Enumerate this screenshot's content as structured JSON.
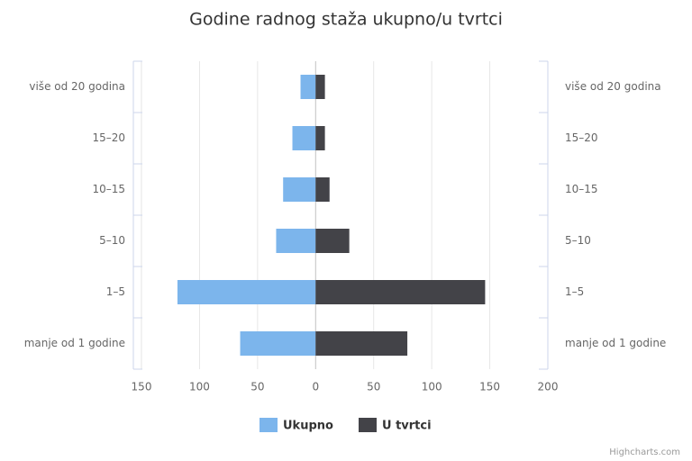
{
  "chart_data": {
    "type": "bar",
    "title": "Godine radnog staža ukupno/u tvrtci",
    "categories": [
      "više od 20 godina",
      "15–20",
      "10–15",
      "5–10",
      "1–5",
      "manje od 1 godine"
    ],
    "series": [
      {
        "name": "Ukupno",
        "color": "#7cb5ec",
        "values": [
          -13,
          -20,
          -28,
          -34,
          -119,
          -65
        ]
      },
      {
        "name": "U tvrtci",
        "color": "#434348",
        "values": [
          8,
          8,
          12,
          29,
          146,
          79
        ]
      }
    ],
    "xlim": [
      -150,
      200
    ],
    "xticks": [
      {
        "value": -150,
        "label": "150"
      },
      {
        "value": -100,
        "label": "100"
      },
      {
        "value": -50,
        "label": "50"
      },
      0,
      50,
      100,
      150,
      200
    ],
    "grid": true,
    "credits": "Highcharts.com"
  }
}
